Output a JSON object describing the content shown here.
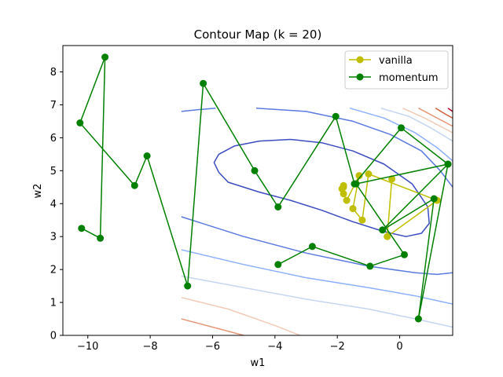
{
  "chart_data": {
    "type": "line",
    "title": "Contour Map (k = 20)",
    "xlabel": "w1",
    "ylabel": "w2",
    "xlim": [
      -10.8,
      1.7
    ],
    "ylim": [
      0,
      8.8
    ],
    "xticks": [
      -10,
      -8,
      -6,
      -4,
      -2,
      0
    ],
    "yticks": [
      0,
      1,
      2,
      3,
      4,
      5,
      6,
      7,
      8
    ],
    "legend_position": "upper right",
    "grid": false,
    "series": [
      {
        "name": "vanilla",
        "color": "#bfbf00",
        "marker": "circle",
        "x": [
          -0.25,
          -0.4,
          1.2,
          -1.0,
          -1.2,
          -1.5,
          -1.3,
          -1.7,
          -1.8,
          -1.85,
          -1.8,
          -1.8
        ],
        "y": [
          4.75,
          3.0,
          4.1,
          4.9,
          3.5,
          3.85,
          4.85,
          4.1,
          4.3,
          4.45,
          4.55,
          4.5
        ]
      },
      {
        "name": "momentum",
        "color": "#008000",
        "marker": "circle",
        "x": [
          -10.2,
          -9.6,
          -9.45,
          -10.25,
          -8.5,
          -8.1,
          -6.8,
          -6.3,
          -4.65,
          -3.9,
          -2.05,
          -1.45,
          0.05,
          1.55,
          0.6,
          1.1,
          -0.55,
          1.55,
          -1.4,
          0.15,
          -0.95,
          -2.8,
          -3.9
        ],
        "y": [
          3.25,
          2.95,
          8.45,
          6.45,
          4.55,
          5.45,
          1.5,
          7.65,
          5.0,
          3.9,
          6.65,
          4.6,
          6.3,
          5.2,
          0.5,
          4.15,
          3.2,
          5.2,
          4.6,
          2.45,
          2.1,
          2.7,
          2.15
        ]
      }
    ],
    "contours": [
      {
        "color": "#3b4cc0",
        "x": [
          -5.8,
          -5.95,
          -5.8,
          -5.3,
          -4.5,
          -3.5,
          -2.5,
          -1.5,
          -0.5,
          0.4,
          0.9,
          0.95,
          0.7,
          0.2,
          -0.5,
          -1.5,
          -2.5,
          -3.5,
          -4.5,
          -5.5,
          -5.8
        ],
        "y": [
          4.95,
          5.25,
          5.5,
          5.75,
          5.9,
          5.95,
          5.85,
          5.6,
          5.2,
          4.6,
          3.9,
          3.4,
          3.1,
          3.0,
          3.15,
          3.45,
          3.8,
          4.1,
          4.35,
          4.65,
          4.95
        ]
      },
      {
        "color": "#5b7ae0",
        "x": [
          -7.0,
          -6.5,
          -5.9
        ],
        "y": [
          6.8,
          6.85,
          6.9
        ]
      },
      {
        "color": "#5b7ae0",
        "x": [
          -4.6,
          -3.0,
          -1.5,
          -0.3,
          0.7,
          1.3,
          1.7
        ],
        "y": [
          6.9,
          6.8,
          6.5,
          6.1,
          5.6,
          5.0,
          4.5
        ]
      },
      {
        "color": "#5b7ae0",
        "x": [
          -7.0,
          -5.0,
          -3.0,
          -1.0,
          0.5,
          1.2,
          1.7
        ],
        "y": [
          3.6,
          3.0,
          2.5,
          2.1,
          1.9,
          1.85,
          1.9
        ]
      },
      {
        "color": "#8db0fe",
        "x": [
          -7.0,
          -5.0,
          -3.0,
          -1.0,
          0.5,
          1.7
        ],
        "y": [
          2.6,
          2.15,
          1.75,
          1.45,
          1.2,
          0.95
        ]
      },
      {
        "color": "#8db0fe",
        "x": [
          -1.6,
          -0.5,
          0.5,
          1.2,
          1.7
        ],
        "y": [
          6.9,
          6.6,
          6.15,
          5.7,
          5.3
        ]
      },
      {
        "color": "#c5d6f2",
        "x": [
          -7.0,
          -5.0,
          -3.0,
          -1.0,
          0.5,
          1.7
        ],
        "y": [
          1.8,
          1.45,
          1.1,
          0.8,
          0.5,
          0.25
        ]
      },
      {
        "color": "#c5d6f2",
        "x": [
          -0.6,
          0.3,
          1.0,
          1.7
        ],
        "y": [
          6.9,
          6.65,
          6.3,
          5.9
        ]
      },
      {
        "color": "#f2cbb7",
        "x": [
          -7.0,
          -5.5,
          -4.0,
          -3.2
        ],
        "y": [
          1.15,
          0.8,
          0.3,
          0.0
        ]
      },
      {
        "color": "#f2cbb7",
        "x": [
          0.1,
          0.8,
          1.4,
          1.7
        ],
        "y": [
          6.9,
          6.6,
          6.3,
          6.15
        ]
      },
      {
        "color": "#e7987a",
        "x": [
          -7.0,
          -6.0,
          -5.0
        ],
        "y": [
          0.5,
          0.25,
          0.0
        ]
      },
      {
        "color": "#e7987a",
        "x": [
          0.6,
          1.2,
          1.7
        ],
        "y": [
          6.9,
          6.6,
          6.35
        ]
      },
      {
        "color": "#d0603f",
        "x": [
          1.15,
          1.5,
          1.7
        ],
        "y": [
          6.9,
          6.7,
          6.6
        ]
      },
      {
        "color": "#b40426",
        "x": [
          1.55,
          1.7
        ],
        "y": [
          6.9,
          6.8
        ]
      }
    ]
  }
}
